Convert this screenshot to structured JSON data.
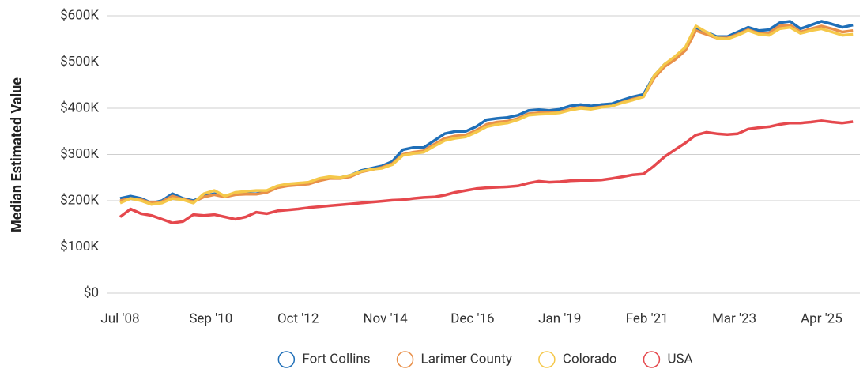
{
  "chart_data": {
    "type": "line",
    "y_label": "Median Estimated Value",
    "x": [
      "2008-07",
      "2008-10",
      "2009-01",
      "2009-04",
      "2009-07",
      "2009-10",
      "2010-01",
      "2010-04",
      "2010-07",
      "2010-10",
      "2011-01",
      "2011-04",
      "2011-07",
      "2011-10",
      "2012-01",
      "2012-04",
      "2012-07",
      "2012-10",
      "2013-01",
      "2013-04",
      "2013-07",
      "2013-10",
      "2014-01",
      "2014-04",
      "2014-07",
      "2014-10",
      "2015-01",
      "2015-04",
      "2015-07",
      "2015-10",
      "2016-01",
      "2016-04",
      "2016-07",
      "2016-10",
      "2017-01",
      "2017-04",
      "2017-07",
      "2017-10",
      "2018-01",
      "2018-04",
      "2018-07",
      "2018-10",
      "2019-01",
      "2019-04",
      "2019-07",
      "2019-10",
      "2020-01",
      "2020-04",
      "2020-07",
      "2020-10",
      "2021-01",
      "2021-04",
      "2021-07",
      "2021-10",
      "2022-01",
      "2022-04",
      "2022-07",
      "2022-10",
      "2023-01",
      "2023-04",
      "2023-07",
      "2023-10",
      "2024-01",
      "2024-04",
      "2024-07",
      "2024-10",
      "2025-01",
      "2025-04",
      "2025-07",
      "2025-10",
      "2026-01"
    ],
    "series": [
      {
        "name": "Fort Collins",
        "color": "#1f6fb8",
        "values": [
          205000,
          210000,
          205000,
          195000,
          200000,
          215000,
          205000,
          200000,
          210000,
          215000,
          210000,
          215000,
          215000,
          215000,
          220000,
          230000,
          235000,
          237000,
          238000,
          245000,
          250000,
          250000,
          255000,
          265000,
          270000,
          275000,
          285000,
          310000,
          315000,
          315000,
          330000,
          345000,
          350000,
          350000,
          360000,
          375000,
          378000,
          380000,
          385000,
          395000,
          397000,
          395000,
          398000,
          405000,
          408000,
          405000,
          408000,
          410000,
          418000,
          425000,
          430000,
          470000,
          495000,
          510000,
          530000,
          572000,
          565000,
          555000,
          555000,
          565000,
          575000,
          568000,
          570000,
          585000,
          588000,
          572000,
          580000,
          588000,
          582000,
          575000,
          580000
        ]
      },
      {
        "name": "Larimer County",
        "color": "#e8904a",
        "values": [
          200000,
          205000,
          202000,
          195000,
          198000,
          210000,
          203000,
          198000,
          208000,
          213000,
          208000,
          213000,
          214000,
          214000,
          218000,
          228000,
          232000,
          234000,
          236000,
          243000,
          248000,
          248000,
          252000,
          262000,
          267000,
          272000,
          280000,
          300000,
          305000,
          308000,
          322000,
          335000,
          340000,
          342000,
          352000,
          365000,
          370000,
          372000,
          378000,
          388000,
          390000,
          390000,
          392000,
          398000,
          402000,
          400000,
          403000,
          405000,
          413000,
          420000,
          425000,
          465000,
          490000,
          505000,
          525000,
          568000,
          560000,
          552000,
          552000,
          560000,
          570000,
          562000,
          563000,
          578000,
          580000,
          565000,
          572000,
          578000,
          572000,
          565000,
          568000
        ]
      },
      {
        "name": "Colorado",
        "color": "#f5c84a",
        "values": [
          195000,
          205000,
          200000,
          192000,
          195000,
          205000,
          202000,
          195000,
          215000,
          222000,
          210000,
          218000,
          220000,
          222000,
          222000,
          232000,
          236000,
          238000,
          240000,
          248000,
          252000,
          250000,
          255000,
          263000,
          268000,
          270000,
          278000,
          298000,
          302000,
          305000,
          318000,
          330000,
          335000,
          338000,
          348000,
          360000,
          365000,
          368000,
          375000,
          385000,
          387000,
          388000,
          390000,
          396000,
          400000,
          398000,
          402000,
          405000,
          412000,
          418000,
          425000,
          470000,
          495000,
          512000,
          532000,
          578000,
          565000,
          552000,
          550000,
          558000,
          568000,
          560000,
          558000,
          572000,
          575000,
          562000,
          568000,
          572000,
          565000,
          558000,
          560000
        ]
      },
      {
        "name": "USA",
        "color": "#e5484d",
        "values": [
          165000,
          182000,
          172000,
          168000,
          160000,
          152000,
          155000,
          170000,
          168000,
          170000,
          165000,
          160000,
          165000,
          175000,
          172000,
          178000,
          180000,
          182000,
          185000,
          187000,
          189000,
          191000,
          193000,
          195000,
          197000,
          199000,
          201000,
          202000,
          205000,
          207000,
          208000,
          212000,
          218000,
          222000,
          226000,
          228000,
          229000,
          230000,
          232000,
          238000,
          242000,
          240000,
          241000,
          243000,
          244000,
          244000,
          245000,
          248000,
          252000,
          256000,
          258000,
          275000,
          295000,
          310000,
          325000,
          342000,
          348000,
          345000,
          343000,
          345000,
          355000,
          358000,
          360000,
          365000,
          368000,
          368000,
          370000,
          373000,
          370000,
          368000,
          371000
        ]
      }
    ],
    "xlim": [
      "2008-07",
      "2026-03"
    ],
    "xticks": [
      {
        "value": "2008-07",
        "label": "Jul '08"
      },
      {
        "value": "2010-09",
        "label": "Sep '10"
      },
      {
        "value": "2012-10",
        "label": "Oct '12"
      },
      {
        "value": "2014-11",
        "label": "Nov '14"
      },
      {
        "value": "2016-12",
        "label": "Dec '16"
      },
      {
        "value": "2019-01",
        "label": "Jan '19"
      },
      {
        "value": "2021-02",
        "label": "Feb '21"
      },
      {
        "value": "2023-03",
        "label": "Mar '23"
      },
      {
        "value": "2025-04",
        "label": "Apr '25"
      }
    ],
    "ylim": [
      0,
      600000
    ],
    "yticks": [
      {
        "value": 0,
        "label": "$0"
      },
      {
        "value": 100000,
        "label": "$100K"
      },
      {
        "value": 200000,
        "label": "$200K"
      },
      {
        "value": 300000,
        "label": "$300K"
      },
      {
        "value": 400000,
        "label": "$400K"
      },
      {
        "value": 500000,
        "label": "$500K"
      },
      {
        "value": 600000,
        "label": "$600K"
      }
    ],
    "grid": true,
    "legend": "bottom"
  }
}
